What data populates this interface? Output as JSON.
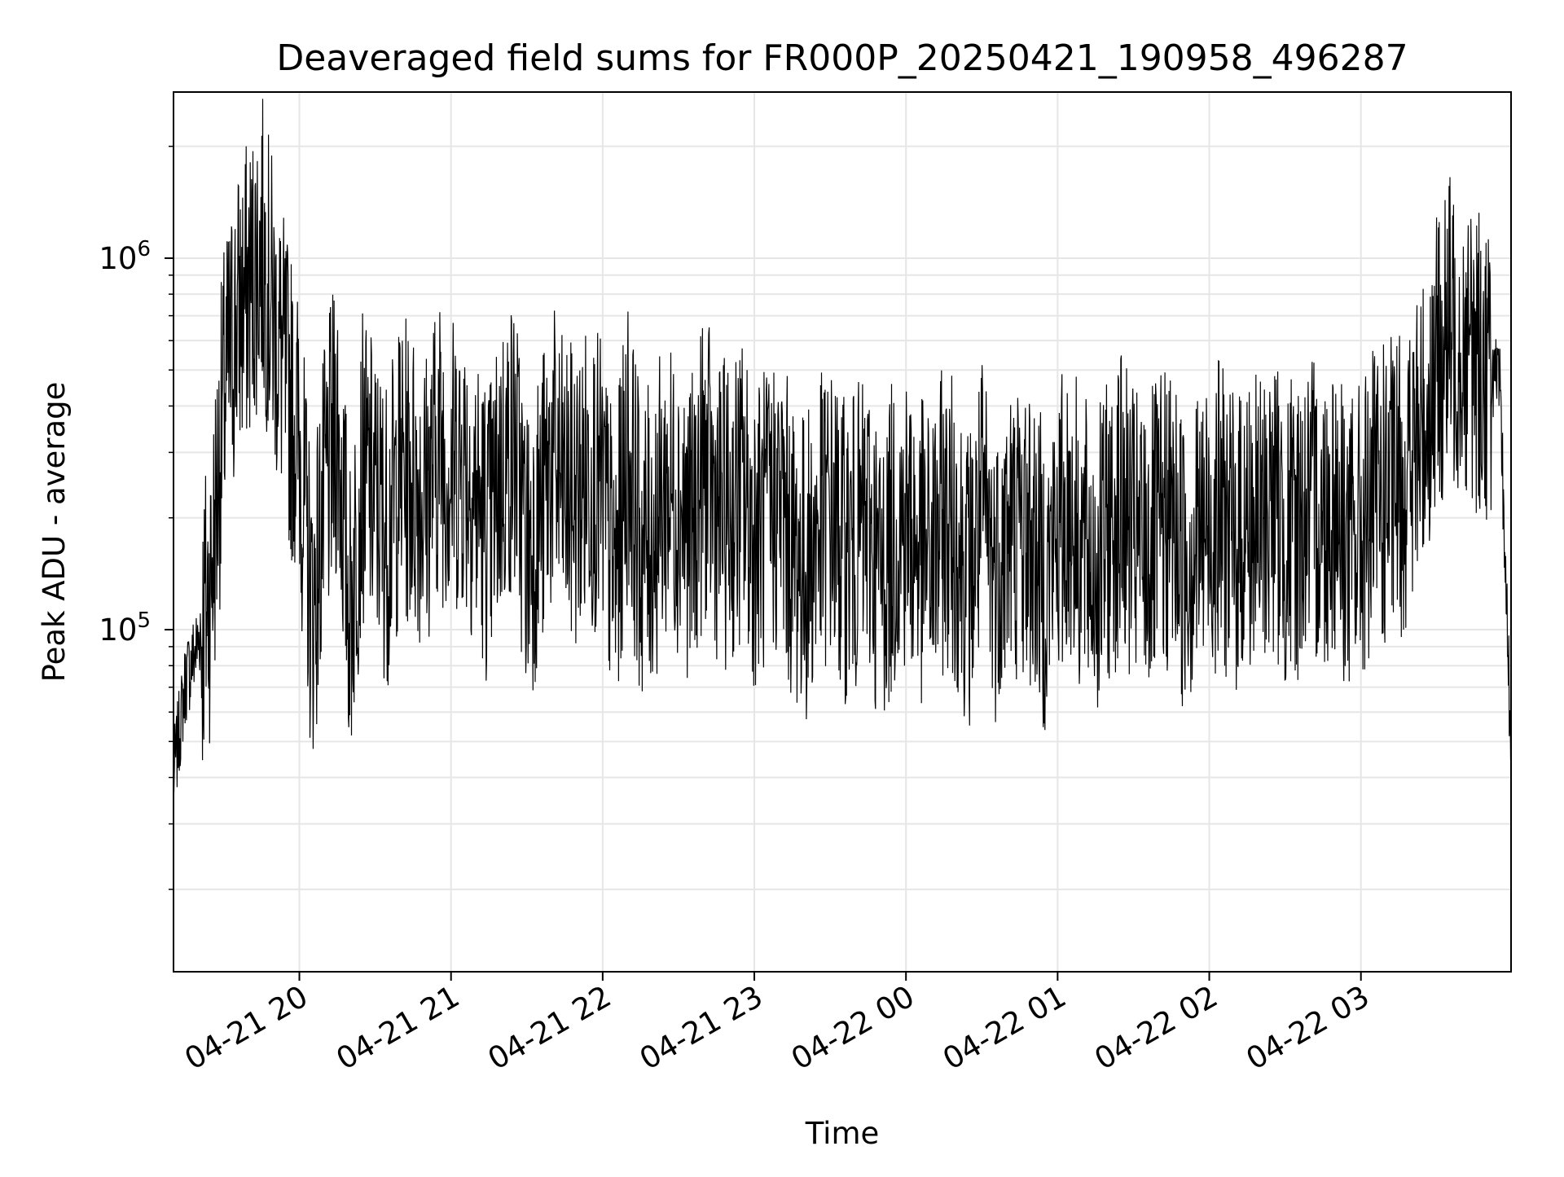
{
  "chart_data": {
    "type": "line",
    "title": "Deaveraged field sums for FR000P_20250421_190958_496287",
    "xlabel": "Time",
    "ylabel": "Peak ADU - average",
    "y_scale": "log",
    "ylim": [
      12000,
      2800000
    ],
    "xlim": [
      "2025-04-21 19:10:12",
      "2025-04-22 03:59:24"
    ],
    "x_tick_labels": [
      "04-21 20",
      "04-21 21",
      "04-21 22",
      "04-21 23",
      "04-22 00",
      "04-22 01",
      "04-22 02",
      "04-22 03"
    ],
    "y_tick_labels": [
      {
        "base": "10",
        "exp": "5",
        "value": 100000
      },
      {
        "base": "10",
        "exp": "6",
        "value": 1000000
      }
    ],
    "grid": true,
    "legend": "none",
    "line_color": "#000000",
    "series": [
      {
        "x": [
          "2025-04-21 19:10",
          "2025-04-21 19:15",
          "2025-04-21 19:20",
          "2025-04-21 19:25",
          "2025-04-21 19:30",
          "2025-04-21 19:35",
          "2025-04-21 19:40",
          "2025-04-21 19:45",
          "2025-04-21 19:50",
          "2025-04-21 19:55",
          "2025-04-21 20:00",
          "2025-04-21 20:05",
          "2025-04-21 20:10",
          "2025-04-21 20:15",
          "2025-04-21 20:20",
          "2025-04-21 20:25",
          "2025-04-21 20:30",
          "2025-04-21 20:35",
          "2025-04-21 20:40",
          "2025-04-21 20:45",
          "2025-04-21 20:50",
          "2025-04-21 20:55",
          "2025-04-21 21:00",
          "2025-04-21 21:05",
          "2025-04-21 21:10",
          "2025-04-21 21:15",
          "2025-04-21 21:20",
          "2025-04-21 21:25",
          "2025-04-21 21:30",
          "2025-04-21 21:35",
          "2025-04-21 21:40",
          "2025-04-21 21:45",
          "2025-04-21 21:50",
          "2025-04-21 21:55",
          "2025-04-21 22:00",
          "2025-04-21 22:05",
          "2025-04-21 22:10",
          "2025-04-21 22:15",
          "2025-04-21 22:20",
          "2025-04-21 22:25",
          "2025-04-21 22:30",
          "2025-04-21 22:35",
          "2025-04-21 22:40",
          "2025-04-21 22:45",
          "2025-04-21 22:50",
          "2025-04-21 22:55",
          "2025-04-21 23:00",
          "2025-04-21 23:05",
          "2025-04-21 23:10",
          "2025-04-21 23:15",
          "2025-04-21 23:20",
          "2025-04-21 23:25",
          "2025-04-21 23:30",
          "2025-04-21 23:35",
          "2025-04-21 23:40",
          "2025-04-21 23:45",
          "2025-04-21 23:50",
          "2025-04-21 23:55",
          "2025-04-22 00:00",
          "2025-04-22 00:05",
          "2025-04-22 00:10",
          "2025-04-22 00:15",
          "2025-04-22 00:20",
          "2025-04-22 00:25",
          "2025-04-22 00:30",
          "2025-04-22 00:35",
          "2025-04-22 00:40",
          "2025-04-22 00:45",
          "2025-04-22 00:50",
          "2025-04-22 00:55",
          "2025-04-22 01:00",
          "2025-04-22 01:05",
          "2025-04-22 01:10",
          "2025-04-22 01:15",
          "2025-04-22 01:20",
          "2025-04-22 01:25",
          "2025-04-22 01:30",
          "2025-04-22 01:35",
          "2025-04-22 01:40",
          "2025-04-22 01:45",
          "2025-04-22 01:50",
          "2025-04-22 01:55",
          "2025-04-22 02:00",
          "2025-04-22 02:05",
          "2025-04-22 02:10",
          "2025-04-22 02:15",
          "2025-04-22 02:20",
          "2025-04-22 02:25",
          "2025-04-22 02:30",
          "2025-04-22 02:35",
          "2025-04-22 02:40",
          "2025-04-22 02:45",
          "2025-04-22 02:50",
          "2025-04-22 02:55",
          "2025-04-22 03:00",
          "2025-04-22 03:05",
          "2025-04-22 03:10",
          "2025-04-22 03:15",
          "2025-04-22 03:20",
          "2025-04-22 03:25",
          "2025-04-22 03:30",
          "2025-04-22 03:35",
          "2025-04-22 03:40",
          "2025-04-22 03:45",
          "2025-04-22 03:50",
          "2025-04-22 03:55",
          "2025-04-22 03:59"
        ],
        "y": [
          40000,
          75000,
          95000,
          150000,
          450000,
          750000,
          900000,
          1200000,
          750000,
          500000,
          350000,
          120000,
          250000,
          400000,
          120000,
          300000,
          250000,
          200000,
          300000,
          280000,
          250000,
          350000,
          300000,
          320000,
          250000,
          200000,
          300000,
          350000,
          180000,
          220000,
          320000,
          250000,
          250000,
          300000,
          250000,
          150000,
          350000,
          180000,
          200000,
          260000,
          250000,
          200000,
          300000,
          240000,
          220000,
          260000,
          200000,
          220000,
          250000,
          180000,
          160000,
          200000,
          230000,
          180000,
          190000,
          210000,
          150000,
          200000,
          220000,
          180000,
          170000,
          220000,
          200000,
          150000,
          230000,
          160000,
          200000,
          210000,
          190000,
          150000,
          200000,
          230000,
          180000,
          160000,
          200000,
          240000,
          190000,
          180000,
          200000,
          220000,
          170000,
          190000,
          210000,
          230000,
          180000,
          220000,
          200000,
          250000,
          190000,
          210000,
          230000,
          220000,
          250000,
          180000,
          200000,
          240000,
          250000,
          270000,
          300000,
          400000,
          550000,
          700000,
          650000,
          600000,
          550000,
          450000,
          60000
        ]
      }
    ]
  }
}
